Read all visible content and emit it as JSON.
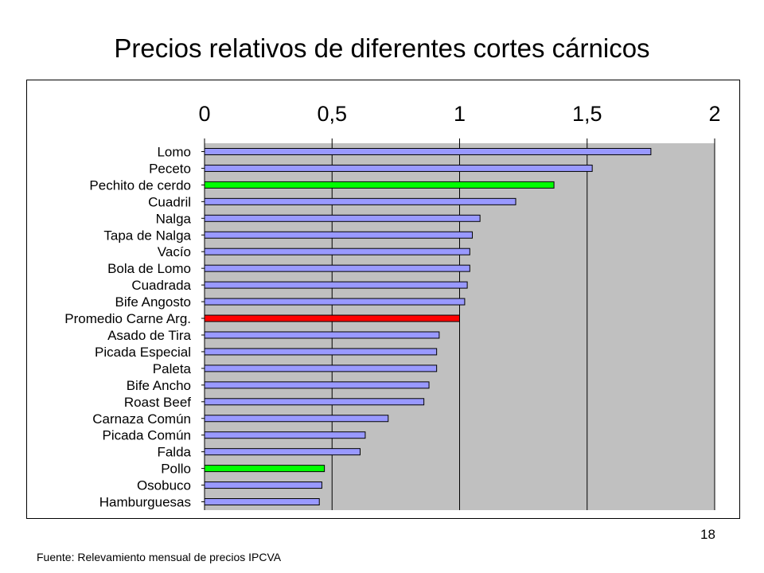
{
  "slide": {
    "title": "Precios relativos de diferentes cortes cárnicos",
    "page_number": "18",
    "source": "Fuente: Relevamiento mensual de precios IPCVA"
  },
  "colors": {
    "plot_background": "#c0c0c0",
    "bar_default": "#9999ff",
    "bar_pork_chicken": "#00ff00",
    "bar_average": "#ff0000",
    "bar_border": "#000000"
  },
  "chart_data": {
    "type": "bar",
    "orientation": "horizontal",
    "title": "",
    "xlabel": "",
    "ylabel": "",
    "xlim": [
      0,
      2
    ],
    "x_ticks": [
      "0",
      "0,5",
      "1",
      "1,5",
      "2"
    ],
    "x_axis_position": "top",
    "grid": "vertical",
    "legend": "none",
    "categories": [
      "Lomo",
      "Peceto",
      "Pechito de cerdo",
      "Cuadril",
      "Nalga",
      "Tapa de Nalga",
      "Vacío",
      "Bola de Lomo",
      "Cuadrada",
      "Bife Angosto",
      "Promedio Carne Arg.",
      "Asado de Tira",
      "Picada Especial",
      "Paleta",
      "Bife Ancho",
      "Roast Beef",
      "Carnaza Común",
      "Picada Común",
      "Falda",
      "Pollo",
      "Osobuco",
      "Hamburguesas"
    ],
    "values": [
      1.75,
      1.52,
      1.37,
      1.22,
      1.08,
      1.05,
      1.04,
      1.04,
      1.03,
      1.02,
      1.0,
      0.92,
      0.91,
      0.91,
      0.88,
      0.86,
      0.72,
      0.63,
      0.61,
      0.47,
      0.46,
      0.45
    ],
    "bar_colors": [
      "#9999ff",
      "#9999ff",
      "#00ff00",
      "#9999ff",
      "#9999ff",
      "#9999ff",
      "#9999ff",
      "#9999ff",
      "#9999ff",
      "#9999ff",
      "#ff0000",
      "#9999ff",
      "#9999ff",
      "#9999ff",
      "#9999ff",
      "#9999ff",
      "#9999ff",
      "#9999ff",
      "#9999ff",
      "#00ff00",
      "#9999ff",
      "#9999ff"
    ]
  }
}
